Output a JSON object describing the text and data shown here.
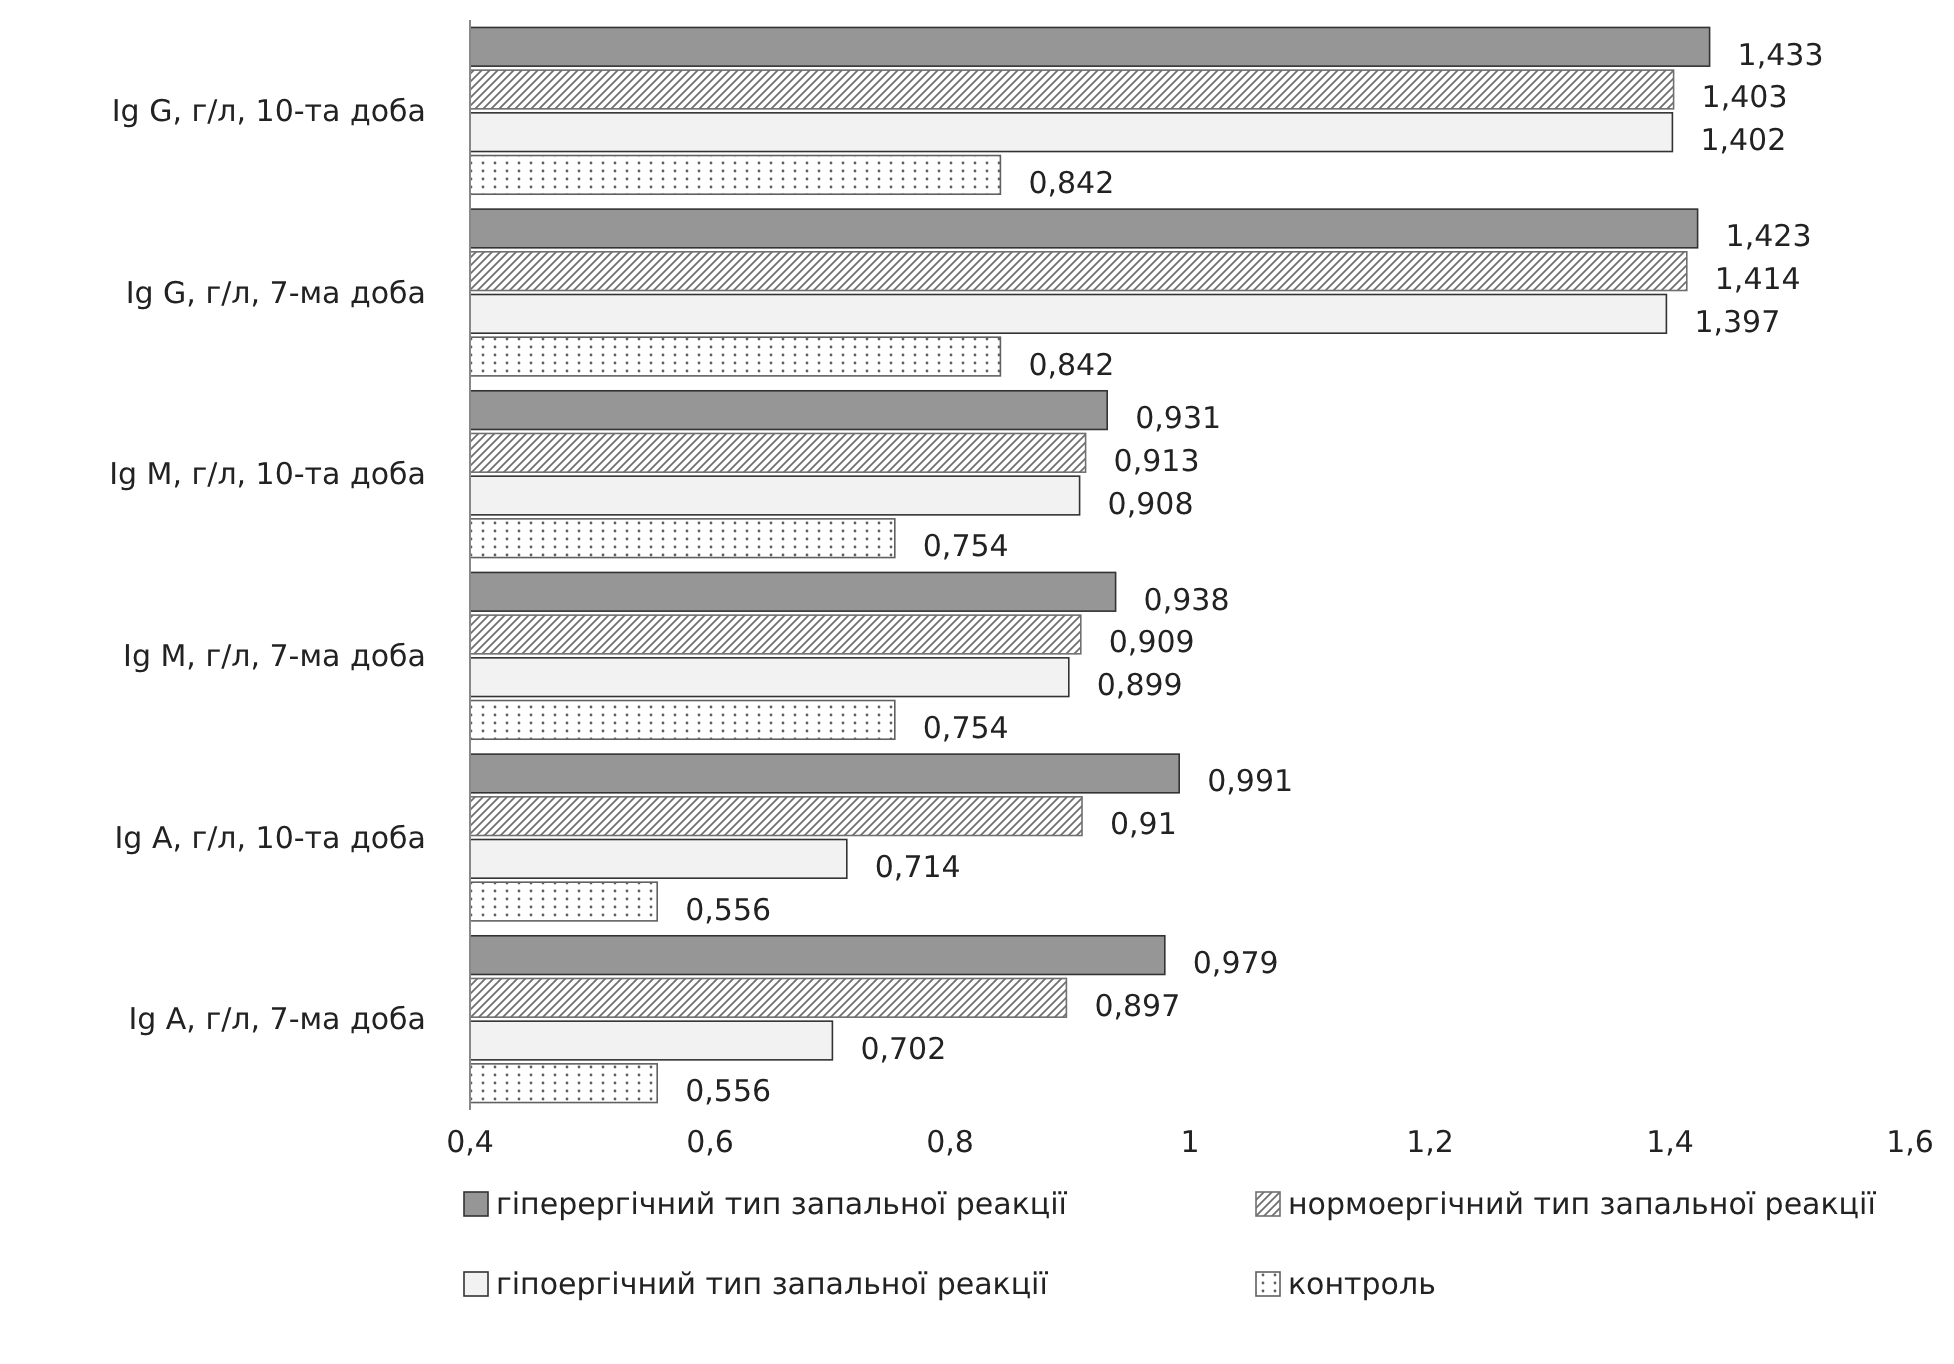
{
  "chart_data": {
    "type": "bar",
    "orientation": "horizontal",
    "categories": [
      "Ig  G, г/л, 10-та доба",
      "Ig  G, г/л, 7-ма доба",
      "Ig  M,  г/л, 10-та доба",
      "Ig  M,  г/л, 7-ма доба",
      "Ig  A, г/л, 10-та доба",
      "Ig  A, г/л, 7-ма доба"
    ],
    "series": [
      {
        "name": "гіперергічний тип запальної реакції",
        "color": "#969696",
        "values": [
          1.433,
          1.423,
          0.931,
          0.938,
          0.991,
          0.979
        ],
        "value_labels": [
          "1,433",
          "1,423",
          "0,931",
          "0,938",
          "0,991",
          "0,979"
        ]
      },
      {
        "name": "нормоергічний тип запальної реакції",
        "color": "#707070",
        "values": [
          1.403,
          1.414,
          0.913,
          0.909,
          0.91,
          0.897
        ],
        "value_labels": [
          "1,403",
          "1,414",
          "0,913",
          "0,909",
          "0,91",
          "0,897"
        ]
      },
      {
        "name": "гіпоергічний тип запальної реакції",
        "color": "#f2f2f2",
        "values": [
          1.402,
          1.397,
          0.908,
          0.899,
          0.714,
          0.702
        ],
        "value_labels": [
          "1,402",
          "1,397",
          "0,908",
          "0,899",
          "0,714",
          "0,702"
        ]
      },
      {
        "name": "контроль",
        "color": "#606060",
        "values": [
          0.842,
          0.842,
          0.754,
          0.754,
          0.556,
          0.556
        ],
        "value_labels": [
          "0,842",
          "0,842",
          "0,754",
          "0,754",
          "0,556",
          "0,556"
        ]
      }
    ],
    "xlim": [
      0.4,
      1.6
    ],
    "xticks": [
      {
        "value": 0.4,
        "label": "0,4"
      },
      {
        "value": 0.6,
        "label": "0,6"
      },
      {
        "value": 0.8,
        "label": "0,8"
      },
      {
        "value": 1,
        "label": "1"
      },
      {
        "value": 1.2,
        "label": "1,2"
      },
      {
        "value": 1.4,
        "label": "1,4"
      },
      {
        "value": 1.6,
        "label": "1,6"
      }
    ],
    "grid": false,
    "legend": "bottom"
  }
}
